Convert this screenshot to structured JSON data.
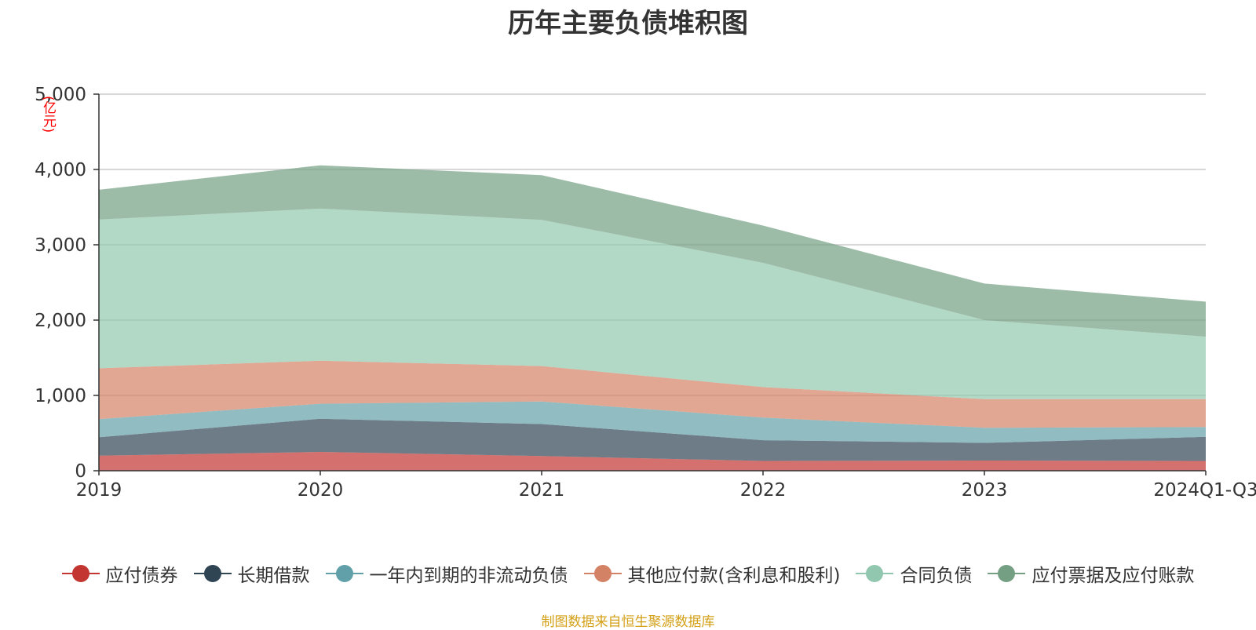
{
  "chart_data": {
    "type": "area",
    "stacked": true,
    "title": "历年主要负债堆积图",
    "unit_label": "(亿元)",
    "categories": [
      "2019",
      "2020",
      "2021",
      "2022",
      "2023",
      "2024Q1-Q3"
    ],
    "y_ticks": [
      "0",
      "1,000",
      "2,000",
      "3,000",
      "4,000",
      "5,000"
    ],
    "ylim": [
      0,
      5000
    ],
    "grid": true,
    "legend_position": "bottom",
    "series": [
      {
        "name": "应付债券",
        "color": "#c23531",
        "values": [
          200,
          250,
          195,
          130,
          135,
          130
        ]
      },
      {
        "name": "长期借款",
        "color": "#2f4554",
        "values": [
          245,
          440,
          425,
          275,
          235,
          320
        ]
      },
      {
        "name": "一年内到期的非流动负债",
        "color": "#61a0a8",
        "values": [
          240,
          200,
          300,
          300,
          200,
          130
        ]
      },
      {
        "name": "其他应付款(含利息和股利)",
        "color": "#d48265",
        "values": [
          675,
          570,
          470,
          405,
          380,
          370
        ]
      },
      {
        "name": "合同负债",
        "color": "#91c7ae",
        "values": [
          1975,
          2020,
          1940,
          1650,
          1050,
          830
        ]
      },
      {
        "name": "应付票据及应付账款",
        "color": "#749f83",
        "values": [
          395,
          575,
          595,
          495,
          485,
          465
        ]
      }
    ],
    "source_note": "制图数据来自恒生聚源数据库"
  }
}
